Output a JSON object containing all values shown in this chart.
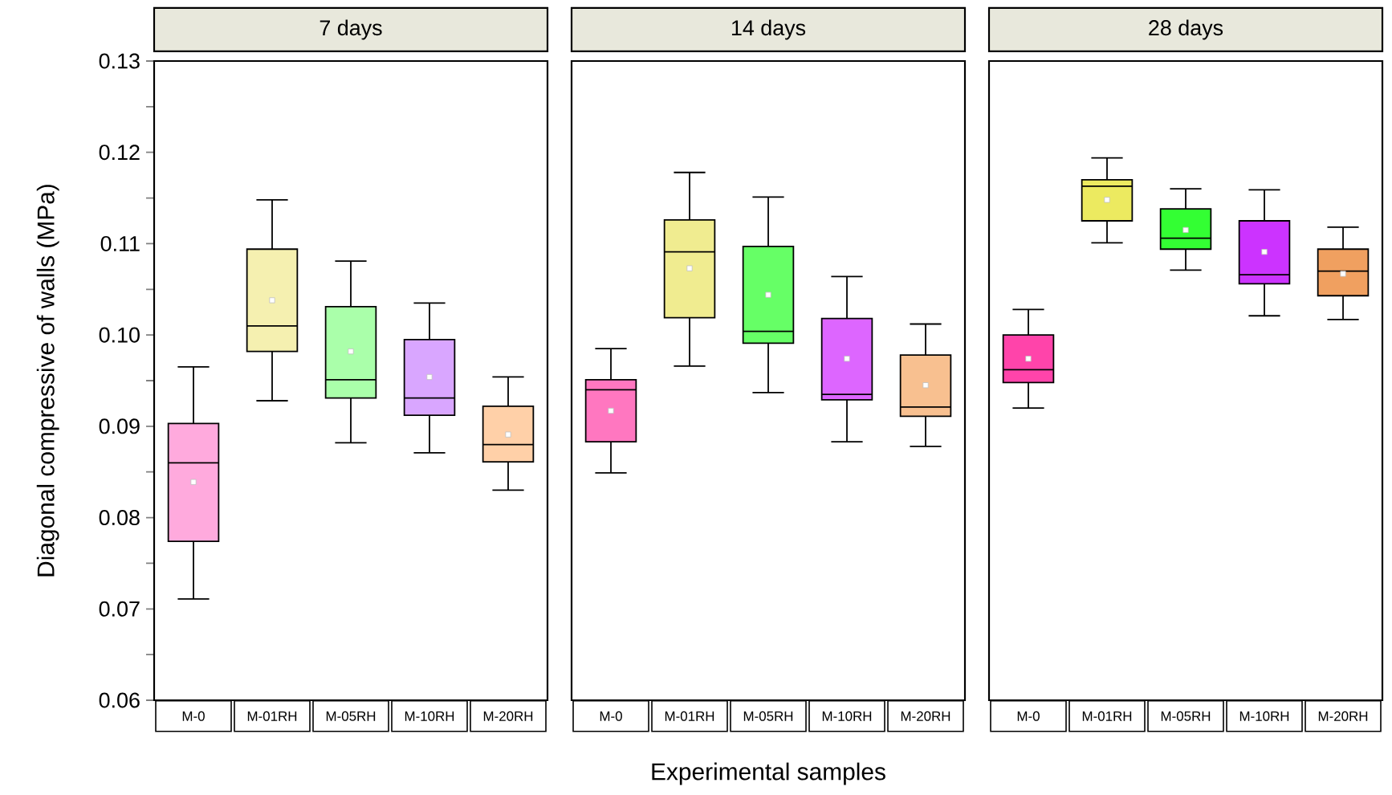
{
  "chart_data": [
    {
      "type": "box",
      "title": "7 days",
      "ylabel": "Diagonal compressive of walls (MPa)",
      "categories": [
        "M-0",
        "M-01RH",
        "M-05RH",
        "M-10RH",
        "M-20RH"
      ],
      "colors": [
        "#ffaadd",
        "#f5f0b0",
        "#aaffaa",
        "#d9a6ff",
        "#ffd0a8"
      ],
      "boxes": [
        {
          "low": 0.0711,
          "q1": 0.0774,
          "median": 0.086,
          "q3": 0.0903,
          "high": 0.0965,
          "mean": 0.0839
        },
        {
          "low": 0.0928,
          "q1": 0.0982,
          "median": 0.101,
          "q3": 0.1094,
          "high": 0.1148,
          "mean": 0.1038
        },
        {
          "low": 0.0882,
          "q1": 0.0931,
          "median": 0.0951,
          "q3": 0.1031,
          "high": 0.1081,
          "mean": 0.0982
        },
        {
          "low": 0.0871,
          "q1": 0.0912,
          "median": 0.0931,
          "q3": 0.0995,
          "high": 0.1035,
          "mean": 0.0954
        },
        {
          "low": 0.083,
          "q1": 0.0861,
          "median": 0.088,
          "q3": 0.0922,
          "high": 0.0954,
          "mean": 0.0891
        }
      ],
      "ylim": [
        0.06,
        0.13
      ],
      "yticks": [
        0.06,
        {
          "value": 0.065,
          "label": null
        },
        0.07,
        {
          "value": 0.075,
          "label": null
        },
        0.08,
        {
          "value": 0.085,
          "label": null
        },
        0.09,
        {
          "value": 0.095,
          "label": null
        },
        "0.10",
        {
          "value": 0.105,
          "label": null
        },
        0.11,
        {
          "value": 0.115,
          "label": null
        },
        0.12,
        {
          "value": 0.125,
          "label": null
        },
        0.13
      ]
    },
    {
      "type": "box",
      "title": "14 days",
      "xlabel": "Experimental samples",
      "categories": [
        "M-0",
        "M-01RH",
        "M-05RH",
        "M-10RH",
        "M-20RH"
      ],
      "colors": [
        "#ff77c0",
        "#f0ec90",
        "#66ff66",
        "#dd66ff",
        "#f8c090"
      ],
      "boxes": [
        {
          "low": 0.0849,
          "q1": 0.0883,
          "median": 0.094,
          "q3": 0.0951,
          "high": 0.0985,
          "mean": 0.0917
        },
        {
          "low": 0.0966,
          "q1": 0.1019,
          "median": 0.1091,
          "q3": 0.1126,
          "high": 0.1178,
          "mean": 0.1073
        },
        {
          "low": 0.0937,
          "q1": 0.0991,
          "median": 0.1004,
          "q3": 0.1097,
          "high": 0.1151,
          "mean": 0.1044
        },
        {
          "low": 0.0883,
          "q1": 0.0929,
          "median": 0.0935,
          "q3": 0.1018,
          "high": 0.1064,
          "mean": 0.0974
        },
        {
          "low": 0.0878,
          "q1": 0.0911,
          "median": 0.0921,
          "q3": 0.0978,
          "high": 0.1012,
          "mean": 0.0945
        }
      ],
      "ylim": [
        0.06,
        0.13
      ],
      "tick_labels": "x"
    },
    {
      "type": "box",
      "title": "28 days",
      "categories": [
        "M-0",
        "M-01RH",
        "M-05RH",
        "M-10RH",
        "M-20RH"
      ],
      "colors": [
        "#ff44aa",
        "#ecea60",
        "#33ff33",
        "#cc33ff",
        "#f0a060"
      ],
      "boxes": [
        {
          "low": 0.092,
          "q1": 0.0948,
          "median": 0.0962,
          "q3": 0.1,
          "high": 0.1028,
          "mean": 0.0974
        },
        {
          "low": 0.1101,
          "q1": 0.1125,
          "median": 0.1163,
          "q3": 0.117,
          "high": 0.1194,
          "mean": 0.1148
        },
        {
          "low": 0.1071,
          "q1": 0.1094,
          "median": 0.1106,
          "q3": 0.1138,
          "high": 0.116,
          "mean": 0.1115
        },
        {
          "low": 0.1021,
          "q1": 0.1056,
          "median": 0.1066,
          "q3": 0.1125,
          "high": 0.1159,
          "mean": 0.1091
        },
        {
          "low": 0.1017,
          "q1": 0.1043,
          "median": 0.107,
          "q3": 0.1094,
          "high": 0.1118,
          "mean": 0.1067
        }
      ],
      "ylim": [
        0.06,
        0.13
      ],
      "tick_labels": "x"
    }
  ]
}
